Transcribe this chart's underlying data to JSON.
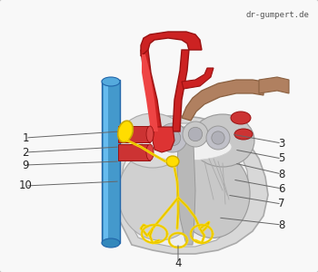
{
  "watermark": "dr-gumpert.de",
  "bg_color": "#f8f8f8",
  "heart_outer_color": "#d8d8d8",
  "heart_inner_color": "#e8e8e8",
  "heart_edge_color": "#aaaaaa",
  "aorta_color": "#cc2222",
  "aorta_highlight": "#ee4444",
  "aorta_shadow": "#991111",
  "brown_color": "#b08060",
  "brown_edge": "#8a6040",
  "blue_color": "#4499cc",
  "blue_highlight": "#66bbee",
  "blue_edge": "#2266aa",
  "red_vessel_color": "#cc3333",
  "red_vessel_edge": "#991111",
  "yellow_color": "#ffdd00",
  "yellow_edge": "#ccaa00",
  "gray_dark": "#aaaaaa",
  "gray_med": "#c8c8c8",
  "gray_light": "#e0e0e0",
  "white_area": "#f0f0f0",
  "line_color": "#666666",
  "label_color": "#222222",
  "label_fontsize": 8.5,
  "line_width": 0.7
}
